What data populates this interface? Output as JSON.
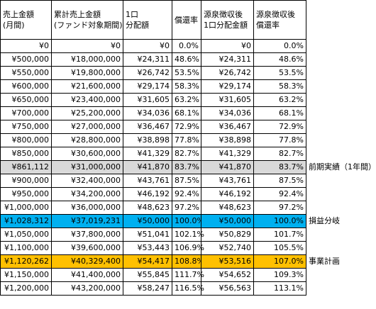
{
  "table": {
    "header": [
      [
        "売上金額",
        "(月間)"
      ],
      [
        "累計売上金額",
        "(ファンド対象期間)"
      ],
      [
        "1口",
        "分配額"
      ],
      [
        "償還率"
      ],
      [
        "源泉徴収後",
        "1口分配金額"
      ],
      [
        "源泉徴収後",
        "償還率"
      ]
    ],
    "rows": [
      {
        "cells": [
          "¥0",
          "¥0",
          "¥0",
          "0.0%",
          "¥0",
          "0.0%"
        ]
      },
      {
        "cells": [
          "¥500,000",
          "¥18,000,000",
          "¥24,311",
          "48.6%",
          "¥24,311",
          "48.6%"
        ]
      },
      {
        "cells": [
          "¥550,000",
          "¥19,800,000",
          "¥26,742",
          "53.5%",
          "¥26,742",
          "53.5%"
        ]
      },
      {
        "cells": [
          "¥600,000",
          "¥21,600,000",
          "¥29,174",
          "58.3%",
          "¥29,174",
          "58.3%"
        ]
      },
      {
        "cells": [
          "¥650,000",
          "¥23,400,000",
          "¥31,605",
          "63.2%",
          "¥31,605",
          "63.2%"
        ]
      },
      {
        "cells": [
          "¥700,000",
          "¥25,200,000",
          "¥34,036",
          "68.1%",
          "¥34,036",
          "68.1%"
        ]
      },
      {
        "cells": [
          "¥750,000",
          "¥27,000,000",
          "¥36,467",
          "72.9%",
          "¥36,467",
          "72.9%"
        ]
      },
      {
        "cells": [
          "¥800,000",
          "¥28,800,000",
          "¥38,898",
          "77.8%",
          "¥38,898",
          "77.8%"
        ]
      },
      {
        "cells": [
          "¥850,000",
          "¥30,600,000",
          "¥41,329",
          "82.7%",
          "¥41,329",
          "82.7%"
        ]
      },
      {
        "cells": [
          "¥861,112",
          "¥31,000,000",
          "¥41,870",
          "83.7%",
          "¥41,870",
          "83.7%"
        ],
        "note": "前期実績（1年間）",
        "fill": "#d9d9d9"
      },
      {
        "cells": [
          "¥900,000",
          "¥32,400,000",
          "¥43,761",
          "87.5%",
          "¥43,761",
          "87.5%"
        ]
      },
      {
        "cells": [
          "¥950,000",
          "¥34,200,000",
          "¥46,192",
          "92.4%",
          "¥46,192",
          "92.4%"
        ]
      },
      {
        "cells": [
          "¥1,000,000",
          "¥36,000,000",
          "¥48,623",
          "97.2%",
          "¥48,623",
          "97.2%"
        ]
      },
      {
        "cells": [
          "¥1,028,312",
          "¥37,019,231",
          "¥50,000",
          "100.0%",
          "¥50,000",
          "100.0%"
        ],
        "note": "損益分岐",
        "fill": "#00b0f0"
      },
      {
        "cells": [
          "¥1,050,000",
          "¥37,800,000",
          "¥51,041",
          "102.1%",
          "¥50,829",
          "101.7%"
        ]
      },
      {
        "cells": [
          "¥1,100,000",
          "¥39,600,000",
          "¥53,443",
          "106.9%",
          "¥52,740",
          "105.5%"
        ]
      },
      {
        "cells": [
          "¥1,120,262",
          "¥40,329,400",
          "¥54,417",
          "108.8%",
          "¥53,516",
          "107.0%"
        ],
        "note": "事業計画",
        "fill": "#ffc000"
      },
      {
        "cells": [
          "¥1,150,000",
          "¥41,400,000",
          "¥55,845",
          "111.7%",
          "¥54,652",
          "109.3%"
        ]
      },
      {
        "cells": [
          "¥1,200,000",
          "¥43,200,000",
          "¥58,247",
          "116.5%",
          "¥56,563",
          "113.1%"
        ]
      }
    ]
  }
}
